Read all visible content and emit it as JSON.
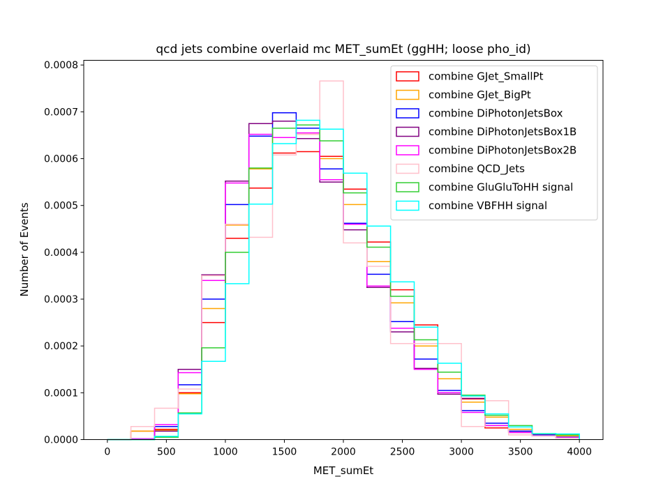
{
  "chart_data": {
    "type": "histogram-step",
    "title": "qcd jets combine overlaid mc MET_sumEt (ggHH; loose pho_id)",
    "xlabel": "MET_sumEt",
    "ylabel": "Number of Events",
    "xlim": [
      -200,
      4200
    ],
    "ylim": [
      0,
      0.00081
    ],
    "xticks": [
      0,
      500,
      1000,
      1500,
      2000,
      2500,
      3000,
      3500,
      4000
    ],
    "xtick_labels": [
      "0",
      "500",
      "1000",
      "1500",
      "2000",
      "2500",
      "3000",
      "3500",
      "4000"
    ],
    "yticks": [
      0,
      0.0001,
      0.0002,
      0.0003,
      0.0004,
      0.0005,
      0.0006,
      0.0007,
      0.0008
    ],
    "ytick_labels": [
      "0.0000",
      "0.0001",
      "0.0002",
      "0.0003",
      "0.0004",
      "0.0005",
      "0.0006",
      "0.0007",
      "0.0008"
    ],
    "bin_edges": [
      0,
      200,
      400,
      600,
      800,
      1000,
      1200,
      1400,
      1600,
      1800,
      2000,
      2200,
      2400,
      2600,
      2800,
      3000,
      3200,
      3400,
      3600,
      3800,
      4000
    ],
    "legend_position": "top-right",
    "grid": false,
    "series": [
      {
        "name": "combine GJet_SmallPt",
        "color": "#ff0000",
        "values": [
          0.0,
          1.8e-05,
          2.2e-05,
          0.0001,
          0.00025,
          0.00043,
          0.000537,
          0.000612,
          0.000615,
          0.000605,
          0.000535,
          0.000422,
          0.00032,
          0.000245,
          0.0001,
          8.7e-05,
          2.5e-05,
          1.8e-05,
          1e-05,
          5e-06
        ]
      },
      {
        "name": "combine GJet_BigPt",
        "color": "#ffa500",
        "values": [
          0.0,
          1.8e-05,
          2e-05,
          9.8e-05,
          0.00028,
          0.000458,
          0.000578,
          0.000645,
          0.000652,
          0.0006,
          0.000502,
          0.00038,
          0.000292,
          0.0002,
          0.00013,
          8e-05,
          4.8e-05,
          2.2e-05,
          1.2e-05,
          8e-06
        ]
      },
      {
        "name": "combine DiPhotonJetsBox",
        "color": "#0000ff",
        "values": [
          0.0,
          2e-06,
          2.8e-05,
          0.000117,
          0.0003,
          0.000502,
          0.000648,
          0.000698,
          0.000665,
          0.000578,
          0.000462,
          0.000353,
          0.000252,
          0.000172,
          0.000105,
          6.2e-05,
          3.5e-05,
          1.8e-05,
          1e-05,
          5e-06
        ]
      },
      {
        "name": "combine DiPhotonJetsBox1B",
        "color": "#800080",
        "values": [
          0.0,
          2e-06,
          1.8e-05,
          0.00015,
          0.000352,
          0.000552,
          0.000675,
          0.00068,
          0.000643,
          0.00055,
          0.000448,
          0.000325,
          0.00023,
          0.000152,
          9.7e-05,
          8.8e-05,
          3e-05,
          1.5e-05,
          8e-06,
          4e-06
        ]
      },
      {
        "name": "combine DiPhotonJetsBox2B",
        "color": "#ff00ff",
        "values": [
          0.0,
          2e-06,
          3.2e-05,
          0.000143,
          0.00034,
          0.000548,
          0.000652,
          0.000645,
          0.000655,
          0.000555,
          0.00046,
          0.000328,
          0.000238,
          0.00015,
          0.0001,
          5.8e-05,
          3e-05,
          1.5e-05,
          8e-06,
          4e-06
        ]
      },
      {
        "name": "combine QCD_Jets",
        "color": "#ffc0cb",
        "values": [
          0.0,
          2.8e-05,
          6.7e-05,
          0.000108,
          0.00035,
          0.00046,
          0.000432,
          0.000608,
          0.000652,
          0.000766,
          0.00042,
          0.00037,
          0.000205,
          0.000205,
          0.000205,
          2.8e-05,
          8.3e-05,
          1e-05,
          8e-06,
          3e-06
        ]
      },
      {
        "name": "combine GluGluToHH signal",
        "color": "#32cd32",
        "values": [
          0.0,
          0.0,
          5e-06,
          5.7e-05,
          0.000196,
          0.0004,
          0.00058,
          0.000665,
          0.000672,
          0.000638,
          0.000527,
          0.000411,
          0.000306,
          0.000213,
          0.000144,
          9.5e-05,
          5.2e-05,
          3e-05,
          1.3e-05,
          1e-05
        ]
      },
      {
        "name": "combine VBFHH signal",
        "color": "#00ffff",
        "values": [
          0.0,
          0.0,
          7e-06,
          5.5e-05,
          0.000167,
          0.000333,
          0.000503,
          0.000632,
          0.000682,
          0.000663,
          0.000569,
          0.000456,
          0.000337,
          0.00024,
          0.000163,
          9.3e-05,
          5.5e-05,
          2.7e-05,
          1.3e-05,
          1.2e-05
        ]
      }
    ]
  }
}
